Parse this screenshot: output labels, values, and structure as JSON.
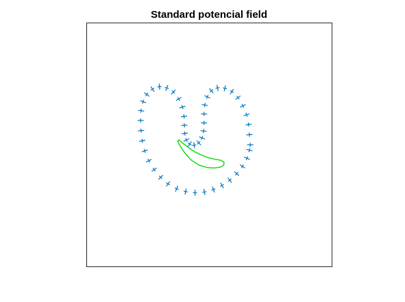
{
  "chart_data": {
    "type": "scatter",
    "title": "Standard potencial field",
    "xlabel": "",
    "ylabel": "",
    "grid": false,
    "axis_ticks": "none",
    "boundary_series": {
      "marker": "cross",
      "color": "#0072BD",
      "points_note": "",
      "points": [
        [
          1,
          0
        ],
        [
          0.98,
          0.25
        ],
        [
          0.96,
          0.5
        ],
        [
          0.91,
          0.74
        ],
        [
          0.82,
          0.96
        ],
        [
          0.7,
          1.16
        ],
        [
          0.55,
          1.31
        ],
        [
          0.38,
          1.39
        ],
        [
          0.2,
          1.4
        ],
        [
          0.05,
          1.33
        ],
        [
          -0.05,
          1.18
        ],
        [
          -0.11,
          0.98
        ],
        [
          -0.13,
          0.76
        ],
        [
          -0.13,
          0.54
        ],
        [
          -0.14,
          0.34
        ],
        [
          -0.18,
          0.17
        ],
        [
          -0.26,
          0.05
        ],
        [
          -0.37,
          -0.01
        ],
        [
          -0.48,
          0.02
        ],
        [
          -0.56,
          0.12
        ],
        [
          -0.6,
          0.28
        ],
        [
          -0.61,
          0.48
        ],
        [
          -0.62,
          0.7
        ],
        [
          -0.66,
          0.93
        ],
        [
          -0.75,
          1.13
        ],
        [
          -0.88,
          1.3
        ],
        [
          -1.04,
          1.4
        ],
        [
          -1.22,
          1.43
        ],
        [
          -1.39,
          1.37
        ],
        [
          -1.53,
          1.24
        ],
        [
          -1.62,
          1.06
        ],
        [
          -1.67,
          0.84
        ],
        [
          -1.68,
          0.6
        ],
        [
          -1.67,
          0.35
        ],
        [
          -1.64,
          0.1
        ],
        [
          -1.58,
          -0.15
        ],
        [
          -1.48,
          -0.39
        ],
        [
          -1.35,
          -0.61
        ],
        [
          -1.19,
          -0.8
        ],
        [
          -1.01,
          -0.96
        ],
        [
          -0.8,
          -1.08
        ],
        [
          -0.58,
          -1.15
        ],
        [
          -0.35,
          -1.18
        ],
        [
          -0.12,
          -1.16
        ],
        [
          0.1,
          -1.1
        ],
        [
          0.31,
          -1
        ],
        [
          0.5,
          -0.87
        ],
        [
          0.67,
          -0.71
        ],
        [
          0.81,
          -0.53
        ],
        [
          0.92,
          -0.33
        ],
        [
          0.98,
          -0.13
        ]
      ]
    },
    "inner_curve": {
      "color": "#00DD00",
      "points": [
        [
          -0.78,
          0.1
        ],
        [
          -0.72,
          -0.02
        ],
        [
          -0.6,
          -0.2
        ],
        [
          -0.44,
          -0.38
        ],
        [
          -0.25,
          -0.5
        ],
        [
          -0.05,
          -0.56
        ],
        [
          0.12,
          -0.57
        ],
        [
          0.27,
          -0.55
        ],
        [
          0.35,
          -0.5
        ],
        [
          0.36,
          -0.43
        ],
        [
          0.28,
          -0.38
        ],
        [
          0.12,
          -0.35
        ],
        [
          -0.05,
          -0.31
        ],
        [
          -0.2,
          -0.25
        ],
        [
          -0.36,
          -0.17
        ],
        [
          -0.52,
          -0.06
        ],
        [
          -0.65,
          0.04
        ],
        [
          -0.74,
          0.12
        ],
        [
          -0.78,
          0.1
        ]
      ]
    },
    "xlim": [
      -3.0,
      3.0
    ],
    "ylim": [
      -3.0,
      3.0
    ]
  }
}
